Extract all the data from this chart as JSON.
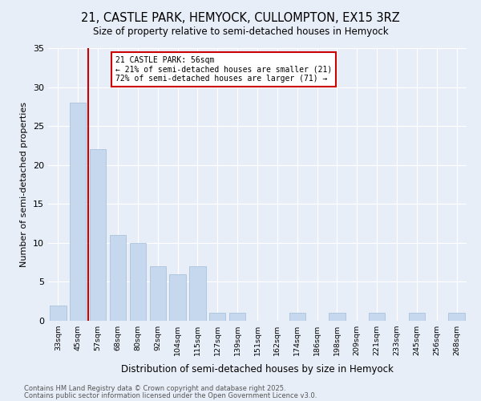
{
  "title": "21, CASTLE PARK, HEMYOCK, CULLOMPTON, EX15 3RZ",
  "subtitle": "Size of property relative to semi-detached houses in Hemyock",
  "xlabel": "Distribution of semi-detached houses by size in Hemyock",
  "ylabel": "Number of semi-detached properties",
  "bar_color": "#c5d8ee",
  "bar_edge_color": "#a0bcd8",
  "background_color": "#e8eef8",
  "grid_color": "#ffffff",
  "categories": [
    "33sqm",
    "45sqm",
    "57sqm",
    "68sqm",
    "80sqm",
    "92sqm",
    "104sqm",
    "115sqm",
    "127sqm",
    "139sqm",
    "151sqm",
    "162sqm",
    "174sqm",
    "186sqm",
    "198sqm",
    "209sqm",
    "221sqm",
    "233sqm",
    "245sqm",
    "256sqm",
    "268sqm"
  ],
  "values": [
    2,
    28,
    22,
    11,
    10,
    7,
    6,
    7,
    1,
    1,
    0,
    0,
    1,
    0,
    1,
    0,
    1,
    0,
    1,
    0,
    1
  ],
  "ylim": [
    0,
    35
  ],
  "yticks": [
    0,
    5,
    10,
    15,
    20,
    25,
    30,
    35
  ],
  "property_line_index": 2,
  "annotation_line1": "21 CASTLE PARK: 56sqm",
  "annotation_line2": "← 21% of semi-detached houses are smaller (21)",
  "annotation_line3": "72% of semi-detached houses are larger (71) →",
  "annotation_box_color": "#ffffff",
  "annotation_border_color": "#cc0000",
  "property_line_color": "#cc0000",
  "footer_line1": "Contains HM Land Registry data © Crown copyright and database right 2025.",
  "footer_line2": "Contains public sector information licensed under the Open Government Licence v3.0."
}
